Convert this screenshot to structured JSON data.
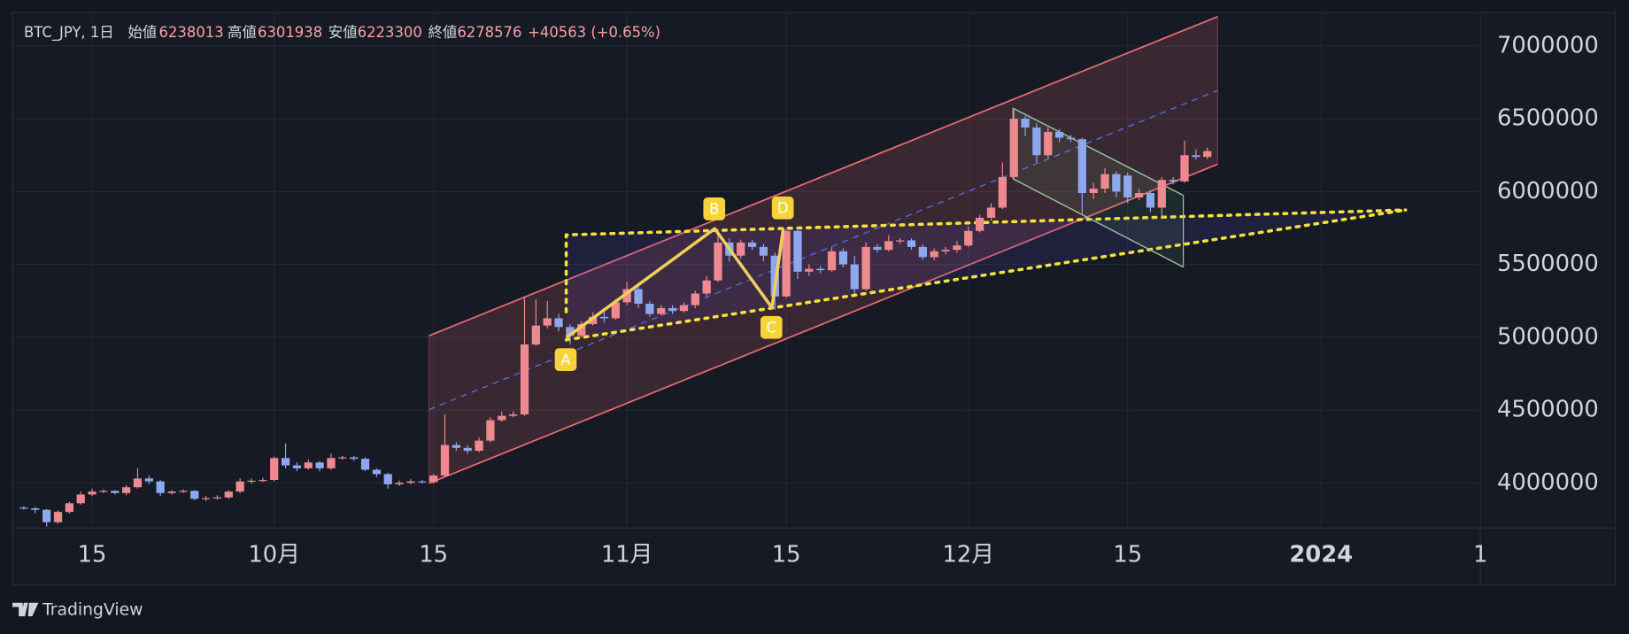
{
  "header": {
    "symbol": "BTC_JPY, 1日",
    "open_label": "始値",
    "open": 6238013,
    "high_label": "高値",
    "high": 6301938,
    "low_label": "安値",
    "low": 6223300,
    "close_label": "終値",
    "close": 6278576,
    "change": "+40563 (+0.65%)"
  },
  "brand": "TradingView",
  "chart_data": {
    "type": "candlestick",
    "up_color": "#ee8a8f",
    "down_color": "#8ea8ee",
    "grid": true,
    "pattern_labels": [
      "A",
      "B",
      "C",
      "D"
    ],
    "ylim": [
      3690000,
      7230000
    ],
    "yticks": [
      4000000,
      4500000,
      5000000,
      5500000,
      6000000,
      6500000,
      7000000
    ],
    "xlim": [
      "09-08",
      "01-15"
    ],
    "xticks": [
      {
        "value": "09-15",
        "label": "15"
      },
      {
        "value": "10-01",
        "label": "10月"
      },
      {
        "value": "10-15",
        "label": "15"
      },
      {
        "value": "11-01",
        "label": "11月"
      },
      {
        "value": "11-15",
        "label": "15"
      },
      {
        "value": "12-01",
        "label": "12月"
      },
      {
        "value": "12-15",
        "label": "15"
      },
      {
        "value": "01-01",
        "label": "2024"
      },
      {
        "value": "01-15",
        "label": "1"
      }
    ],
    "x": [
      "09-09",
      "09-10",
      "09-11",
      "09-12",
      "09-13",
      "09-14",
      "09-15",
      "09-16",
      "09-17",
      "09-18",
      "09-19",
      "09-20",
      "09-21",
      "09-22",
      "09-23",
      "09-24",
      "09-25",
      "09-26",
      "09-27",
      "09-28",
      "09-29",
      "09-30",
      "10-01",
      "10-02",
      "10-03",
      "10-04",
      "10-05",
      "10-06",
      "10-07",
      "10-08",
      "10-09",
      "10-10",
      "10-11",
      "10-12",
      "10-13",
      "10-14",
      "10-15",
      "10-16",
      "10-17",
      "10-18",
      "10-19",
      "10-20",
      "10-21",
      "10-22",
      "10-23",
      "10-24",
      "10-25",
      "10-26",
      "10-27",
      "10-28",
      "10-29",
      "10-30",
      "10-31",
      "11-01",
      "11-02",
      "11-03",
      "11-04",
      "11-05",
      "11-06",
      "11-07",
      "11-08",
      "11-09",
      "11-10",
      "11-11",
      "11-12",
      "11-13",
      "11-14",
      "11-15",
      "11-16",
      "11-17",
      "11-18",
      "11-19",
      "11-20",
      "11-21",
      "11-22",
      "11-23",
      "11-24",
      "11-25",
      "11-26",
      "11-27",
      "11-28",
      "11-29",
      "11-30",
      "12-01",
      "12-02",
      "12-03",
      "12-04",
      "12-05",
      "12-06",
      "12-07",
      "12-08",
      "12-09",
      "12-10",
      "12-11",
      "12-12",
      "12-13",
      "12-14",
      "12-15",
      "12-16",
      "12-17",
      "12-18",
      "12-19",
      "12-20",
      "12-21",
      "12-22"
    ],
    "open": [
      3830000,
      3825000,
      3815000,
      3730000,
      3800000,
      3860000,
      3920000,
      3940000,
      3945000,
      3930000,
      3970000,
      4030000,
      4010000,
      3930000,
      3940000,
      3945000,
      3890000,
      3895000,
      3900000,
      3940000,
      4010000,
      4015000,
      4020000,
      4170000,
      4120000,
      4100000,
      4140000,
      4100000,
      4170000,
      4175000,
      4165000,
      4090000,
      4060000,
      3990000,
      4000000,
      4010000,
      4005000,
      4050000,
      4260000,
      4240000,
      4220000,
      4290000,
      4430000,
      4460000,
      4470000,
      4950000,
      5080000,
      5130000,
      5070000,
      5010000,
      5090000,
      5140000,
      5130000,
      5240000,
      5330000,
      5230000,
      5160000,
      5200000,
      5180000,
      5220000,
      5300000,
      5390000,
      5650000,
      5560000,
      5650000,
      5620000,
      5560000,
      5280000,
      5730000,
      5450000,
      5470000,
      5460000,
      5590000,
      5500000,
      5330000,
      5620000,
      5600000,
      5660000,
      5665000,
      5620000,
      5550000,
      5590000,
      5600000,
      5630000,
      5730000,
      5820000,
      5890000,
      6100000,
      6500000,
      6440000,
      6250000,
      6410000,
      6370000,
      6360000,
      5990000,
      6020000,
      6120000,
      6110000,
      5960000,
      5990000,
      5890000,
      6080000,
      6070000,
      6250000,
      6238013
    ],
    "high": [
      3840000,
      3835000,
      3820000,
      3810000,
      3870000,
      3940000,
      3960000,
      3955000,
      3950000,
      3985000,
      4100000,
      4050000,
      4020000,
      3950000,
      3955000,
      3950000,
      3910000,
      3915000,
      3950000,
      4030000,
      4030000,
      4035000,
      4180000,
      4270000,
      4140000,
      4160000,
      4150000,
      4200000,
      4185000,
      4185000,
      4175000,
      4100000,
      4070000,
      4015000,
      4025000,
      4020000,
      4060000,
      4470000,
      4280000,
      4260000,
      4310000,
      4450000,
      4490000,
      4490000,
      5280000,
      5260000,
      5250000,
      5160000,
      5090000,
      5110000,
      5170000,
      5180000,
      5260000,
      5380000,
      5350000,
      5250000,
      5220000,
      5220000,
      5240000,
      5320000,
      5420000,
      5740000,
      5680000,
      5670000,
      5670000,
      5640000,
      5580000,
      5740000,
      5750000,
      5500000,
      5490000,
      5620000,
      5610000,
      5560000,
      5650000,
      5640000,
      5700000,
      5680000,
      5680000,
      5640000,
      5610000,
      5620000,
      5660000,
      5760000,
      5840000,
      5920000,
      6200000,
      6560000,
      6520000,
      6470000,
      6440000,
      6430000,
      6390000,
      6370000,
      6060000,
      6160000,
      6140000,
      6130000,
      6020000,
      6010000,
      6100000,
      6100000,
      6350000,
      6290000,
      6301938
    ],
    "low": [
      3815000,
      3790000,
      3700000,
      3720000,
      3790000,
      3850000,
      3910000,
      3930000,
      3920000,
      3915000,
      3960000,
      3990000,
      3910000,
      3920000,
      3930000,
      3880000,
      3875000,
      3885000,
      3890000,
      3930000,
      3995000,
      4005000,
      4010000,
      4100000,
      4080000,
      4090000,
      4080000,
      4090000,
      4160000,
      4150000,
      4080000,
      4040000,
      3960000,
      3980000,
      3990000,
      3995000,
      3995000,
      4040000,
      4220000,
      4200000,
      4210000,
      4280000,
      4420000,
      4450000,
      4460000,
      4940000,
      5060000,
      5040000,
      4950000,
      5000000,
      5080000,
      5100000,
      5120000,
      5220000,
      5200000,
      5140000,
      5150000,
      5160000,
      5170000,
      5200000,
      5280000,
      5380000,
      5520000,
      5540000,
      5600000,
      5520000,
      5190000,
      5270000,
      5400000,
      5420000,
      5440000,
      5450000,
      5480000,
      5300000,
      5320000,
      5580000,
      5590000,
      5640000,
      5600000,
      5530000,
      5530000,
      5570000,
      5580000,
      5620000,
      5720000,
      5800000,
      5880000,
      6090000,
      6380000,
      6200000,
      6230000,
      6340000,
      6340000,
      5850000,
      5950000,
      5990000,
      5960000,
      5920000,
      5940000,
      5860000,
      5820000,
      6050000,
      6060000,
      6220000,
      6223300
    ],
    "close": [
      3825000,
      3815000,
      3730000,
      3800000,
      3860000,
      3920000,
      3940000,
      3945000,
      3930000,
      3970000,
      4030000,
      4010000,
      3930000,
      3940000,
      3945000,
      3890000,
      3895000,
      3900000,
      3940000,
      4010000,
      4015000,
      4020000,
      4170000,
      4120000,
      4100000,
      4140000,
      4100000,
      4170000,
      4175000,
      4165000,
      4090000,
      4060000,
      3990000,
      4000000,
      4010000,
      4005000,
      4050000,
      4260000,
      4240000,
      4220000,
      4290000,
      4430000,
      4460000,
      4470000,
      4950000,
      5080000,
      5130000,
      5070000,
      5010000,
      5090000,
      5140000,
      5130000,
      5240000,
      5330000,
      5230000,
      5160000,
      5200000,
      5180000,
      5220000,
      5300000,
      5390000,
      5650000,
      5560000,
      5650000,
      5620000,
      5560000,
      5280000,
      5730000,
      5450000,
      5470000,
      5460000,
      5590000,
      5500000,
      5330000,
      5620000,
      5600000,
      5660000,
      5665000,
      5620000,
      5550000,
      5590000,
      5600000,
      5630000,
      5730000,
      5820000,
      5890000,
      6100000,
      6500000,
      6440000,
      6250000,
      6410000,
      6370000,
      6360000,
      5990000,
      6020000,
      6120000,
      6000000,
      5960000,
      5990000,
      5890000,
      6080000,
      6070000,
      6250000,
      6238000,
      6278576
    ]
  }
}
